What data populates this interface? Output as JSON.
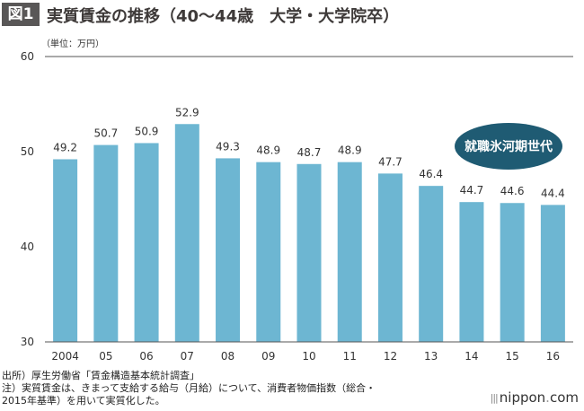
{
  "figure": {
    "badge": "図1",
    "title": "実質賃金の推移（40〜44歳　大学・大学院卒）",
    "unit_label": "（単位：万円）"
  },
  "chart_data": {
    "type": "bar",
    "categories": [
      "2004",
      "05",
      "06",
      "07",
      "08",
      "09",
      "10",
      "11",
      "12",
      "13",
      "14",
      "15",
      "16"
    ],
    "values": [
      49.2,
      50.7,
      50.9,
      52.9,
      49.3,
      48.9,
      48.7,
      48.9,
      47.7,
      46.4,
      44.7,
      44.6,
      44.4
    ],
    "data_labels": [
      "49.2",
      "50.7",
      "50.9",
      "52.9",
      "49.3",
      "48.9",
      "48.7",
      "48.9",
      "47.7",
      "46.4",
      "44.7",
      "44.6",
      "44.4"
    ],
    "ylim": [
      30,
      60
    ],
    "yticks": [
      "30",
      "40",
      "50",
      "60"
    ],
    "bar_color": "#6db6d2",
    "grid": "horizontal at 60",
    "annotation": {
      "text": "就職氷河期世代",
      "color": "#1f5b73",
      "text_color": "#ffffff"
    }
  },
  "notes": {
    "source": "出所）厚生労働省「賃金構造基本統計調査」",
    "note_line1": "注）実質賃金は、きまって支給する給与（月給）について、消費者物価指数（総合・",
    "note_line2": "2015年基準）を用いて実質化した。"
  },
  "brand": {
    "name": "nippon",
    "dot": ".",
    "tld": "com"
  }
}
